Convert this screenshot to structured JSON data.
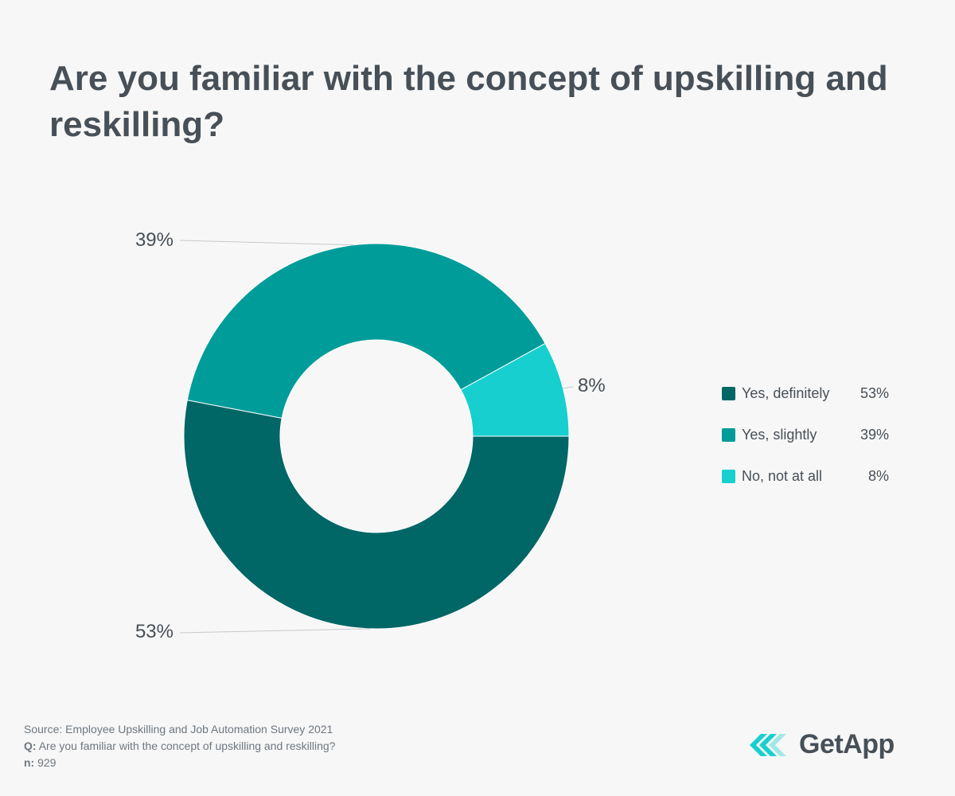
{
  "title": "Are you familiar with the concept of upskilling and reskilling?",
  "chart_data": {
    "type": "pie",
    "donut": true,
    "categories": [
      "Yes, definitely",
      "Yes, slightly",
      "No, not at all"
    ],
    "values": [
      53,
      39,
      8
    ],
    "unit": "%",
    "data_labels": [
      "53%",
      "39%",
      "8%"
    ],
    "colors": [
      "#006666",
      "#009c9a",
      "#17cfcf"
    ],
    "legend": {
      "position": "right",
      "entries": [
        {
          "label": "Yes, definitely",
          "value": "53%"
        },
        {
          "label": "Yes, slightly",
          "value": "39%"
        },
        {
          "label": "No, not at all",
          "value": "8%"
        }
      ]
    }
  },
  "footer": {
    "source_label": "Source:",
    "source_text": "Employee Upskilling and Job Automation Survey 2021",
    "q_label": "Q:",
    "q_text": "Are you familiar with the concept of upskilling and reskilling?",
    "n_label": "n:",
    "n_text": "929"
  },
  "logo": {
    "text": "GetApp",
    "icon": "getapp-chevrons-icon",
    "colors": [
      "#17cfcf",
      "#9ee8e8"
    ]
  }
}
